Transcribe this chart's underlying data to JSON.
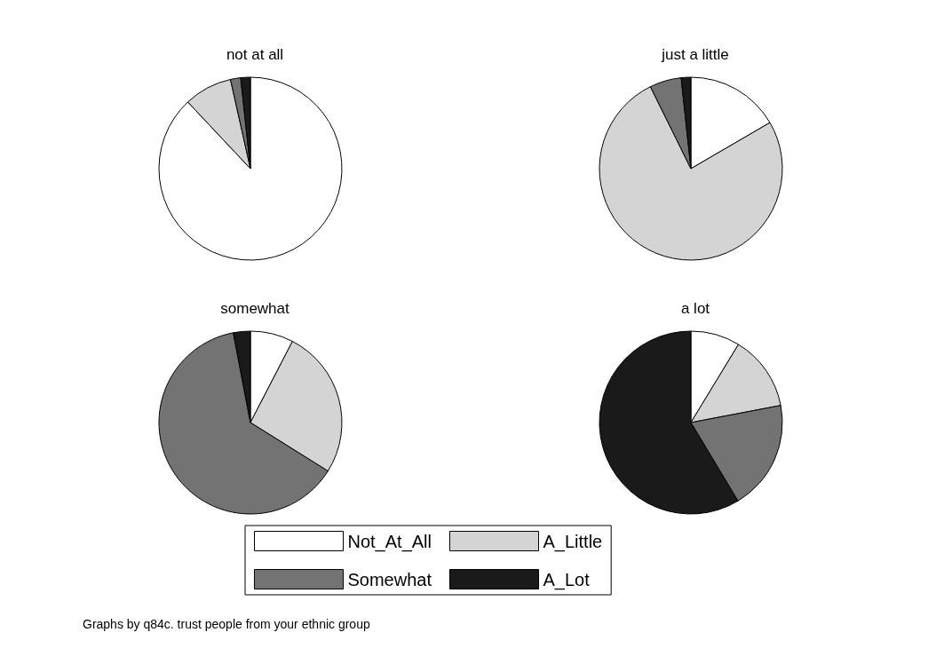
{
  "chart_data": [
    {
      "type": "pie",
      "title": "not at all",
      "categories": [
        null,
        null,
        null,
        null
      ],
      "values": [
        88,
        8.5,
        1.8,
        1.7
      ],
      "colors": [
        "#ffffff",
        "#d4d4d4",
        "#737373",
        "#1a1a1a"
      ]
    },
    {
      "type": "pie",
      "title": "just a little",
      "categories": [
        null,
        null,
        null,
        null
      ],
      "values": [
        16.6,
        76.1,
        5.6,
        1.7
      ],
      "colors": [
        "#ffffff",
        "#d4d4d4",
        "#737373",
        "#1a1a1a"
      ]
    },
    {
      "type": "pie",
      "title": "somewhat",
      "categories": [
        null,
        null,
        null,
        null
      ],
      "values": [
        7.6,
        26.3,
        63.1,
        3.0
      ],
      "colors": [
        "#ffffff",
        "#d4d4d4",
        "#737373",
        "#1a1a1a"
      ]
    },
    {
      "type": "pie",
      "title": "a lot",
      "categories": [
        "Not_At_All",
        "A_Little",
        "Somewhat",
        "A_Lot"
      ],
      "values": [
        8.7,
        13.3,
        19.4,
        58.6
      ],
      "colors": [
        "#ffffff",
        "#d4d4d4",
        "#737373",
        "#1a1a1a"
      ],
      "legend": "bottom",
      "annotations": [
        "Graphs by q84c. trust people from your ethnic group"
      ]
    }
  ]
}
